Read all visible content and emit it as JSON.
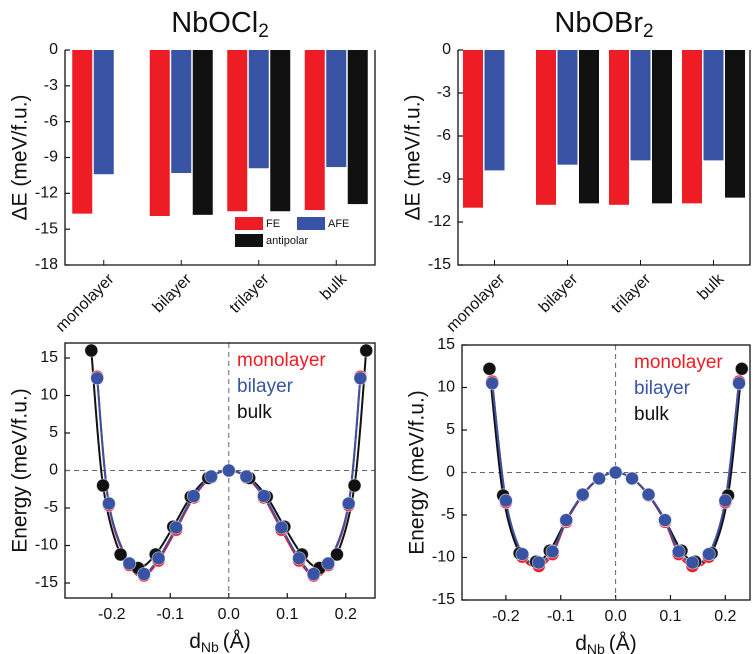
{
  "chart_data": [
    {
      "type": "bar",
      "title": "NbOCl",
      "title_sub": "2",
      "ylabel": "ΔE (meV/f.u.)",
      "categories": [
        "monolayer",
        "bilayer",
        "trilayer",
        "bulk"
      ],
      "series": [
        {
          "name": "FE",
          "color": "#ee1c24",
          "values": [
            -13.7,
            -13.9,
            -13.5,
            -13.4
          ]
        },
        {
          "name": "AFE",
          "color": "#3953a4",
          "values": [
            -10.4,
            -10.3,
            -9.9,
            -9.8
          ]
        },
        {
          "name": "antipolar",
          "color": "#111111",
          "values": [
            null,
            -13.8,
            -13.5,
            -12.9
          ]
        }
      ],
      "ylim": [
        -18,
        0
      ],
      "yticks": [
        0,
        -3,
        -6,
        -9,
        -12,
        -15,
        -18
      ],
      "legend": "lower right"
    },
    {
      "type": "bar",
      "title": "NbOBr",
      "title_sub": "2",
      "ylabel": "ΔE (meV/f.u.)",
      "categories": [
        "monolayer",
        "bilayer",
        "trilayer",
        "bulk"
      ],
      "series": [
        {
          "color": "#ee1c24",
          "values": [
            -11.0,
            -10.8,
            -10.8,
            -10.7
          ]
        },
        {
          "color": "#3953a4",
          "values": [
            -8.4,
            -8.0,
            -7.7,
            -7.7
          ]
        },
        {
          "color": "#111111",
          "values": [
            null,
            -10.7,
            -10.7,
            -10.3
          ]
        }
      ],
      "ylim": [
        -15,
        0
      ],
      "yticks": [
        0,
        -3,
        -6,
        -9,
        -12,
        -15
      ]
    },
    {
      "type": "line",
      "xlabel": "d",
      "xlabel_sub": "Nb",
      "xlabel_unit": "(Å)",
      "ylabel": "Energy (meV/f.u.)",
      "series": [
        {
          "name": "monolayer",
          "color": "#ee1c24",
          "x": [
            -0.225,
            -0.205,
            -0.17,
            -0.145,
            -0.12,
            -0.09,
            -0.06,
            -0.03,
            0,
            0.03,
            0.06,
            0.09,
            0.12,
            0.145,
            0.17,
            0.205,
            0.225
          ],
          "values": [
            12.5,
            -4.6,
            -12.6,
            -14.0,
            -12.0,
            -7.9,
            -3.6,
            -0.9,
            0,
            -0.9,
            -3.6,
            -7.9,
            -12.0,
            -14.0,
            -12.6,
            -4.6,
            12.5
          ]
        },
        {
          "name": "bilayer",
          "color": "#3953a4",
          "x": [
            -0.225,
            -0.205,
            -0.17,
            -0.145,
            -0.12,
            -0.09,
            -0.06,
            -0.03,
            0,
            0.03,
            0.06,
            0.09,
            0.12,
            0.145,
            0.17,
            0.205,
            0.225
          ],
          "values": [
            12.3,
            -4.4,
            -12.4,
            -13.8,
            -11.7,
            -7.6,
            -3.4,
            -0.8,
            0,
            -0.8,
            -3.4,
            -7.6,
            -11.7,
            -13.8,
            -12.4,
            -4.4,
            12.3
          ]
        },
        {
          "name": "bulk",
          "color": "#111111",
          "x": [
            -0.235,
            -0.215,
            -0.185,
            -0.155,
            -0.125,
            -0.095,
            -0.065,
            -0.035,
            0,
            0.035,
            0.065,
            0.095,
            0.125,
            0.155,
            0.185,
            0.215,
            0.235
          ],
          "values": [
            16.0,
            -2.0,
            -11.2,
            -13.0,
            -11.2,
            -7.5,
            -3.5,
            -1.0,
            0,
            -1.0,
            -3.5,
            -7.5,
            -11.2,
            -13.0,
            -11.2,
            -2.0,
            16.0
          ]
        }
      ],
      "xlim": [
        -0.28,
        0.25
      ],
      "xticks": [
        -0.2,
        -0.1,
        {
          "value": 0,
          "label": "0.0"
        },
        0.1,
        0.2
      ],
      "ylim": [
        -17,
        17
      ],
      "yticks": [
        -15,
        -10,
        -5,
        0,
        5,
        10,
        15
      ],
      "legend": "upper right"
    },
    {
      "type": "line",
      "xlabel": "d",
      "xlabel_sub": "Nb",
      "xlabel_unit": "(Å)",
      "ylabel": "Energy (meV/f.u.)",
      "series": [
        {
          "name": "monolayer",
          "color": "#ee1c24",
          "x": [
            -0.225,
            -0.2,
            -0.17,
            -0.14,
            -0.115,
            -0.09,
            -0.06,
            -0.03,
            0,
            0.03,
            0.06,
            0.09,
            0.115,
            0.14,
            0.17,
            0.2,
            0.225
          ],
          "values": [
            10.7,
            -3.5,
            -9.9,
            -11.0,
            -9.6,
            -5.8,
            -2.7,
            -0.7,
            0,
            -0.7,
            -2.7,
            -5.8,
            -9.6,
            -11.0,
            -9.9,
            -3.5,
            10.7
          ]
        },
        {
          "name": "bilayer",
          "color": "#3953a4",
          "x": [
            -0.225,
            -0.2,
            -0.17,
            -0.14,
            -0.115,
            -0.09,
            -0.06,
            -0.03,
            0,
            0.03,
            0.06,
            0.09,
            0.115,
            0.14,
            0.17,
            0.2,
            0.225
          ],
          "values": [
            10.5,
            -3.3,
            -9.6,
            -10.6,
            -9.3,
            -5.6,
            -2.6,
            -0.7,
            0,
            -0.7,
            -2.6,
            -5.6,
            -9.3,
            -10.6,
            -9.6,
            -3.3,
            10.5
          ]
        },
        {
          "name": "bulk",
          "color": "#111111",
          "x": [
            -0.23,
            -0.205,
            -0.175,
            -0.145,
            -0.12,
            -0.09,
            -0.06,
            -0.03,
            0,
            0.03,
            0.06,
            0.09,
            0.12,
            0.145,
            0.175,
            0.205,
            0.23
          ],
          "values": [
            12.2,
            -2.7,
            -9.5,
            -10.5,
            -9.2,
            -5.6,
            -2.6,
            -0.7,
            0,
            -0.7,
            -2.6,
            -5.6,
            -9.2,
            -10.5,
            -9.5,
            -2.7,
            12.2
          ]
        }
      ],
      "xlim": [
        -0.28,
        0.245
      ],
      "xticks": [
        -0.2,
        -0.1,
        {
          "value": 0,
          "label": "0.0"
        },
        0.1,
        0.2
      ],
      "ylim": [
        -15,
        15
      ],
      "yticks": [
        -15,
        -10,
        -5,
        0,
        5,
        10,
        15
      ],
      "legend": "upper right"
    }
  ]
}
